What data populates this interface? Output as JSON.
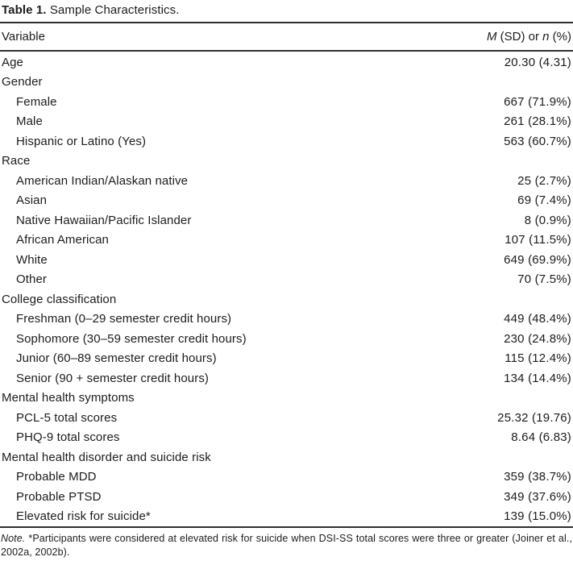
{
  "colors": {
    "background": "#ffffff",
    "text": "#1c1c1c",
    "rule": "#2e2e2e"
  },
  "table": {
    "title_bold": "Table 1.",
    "title_text": " Sample Characteristics.",
    "header": {
      "variable": "Variable",
      "value_m": "M",
      "value_mid": " (SD) or ",
      "value_n": "n",
      "value_suffix": " (%)"
    },
    "rows": [
      {
        "label": "Age",
        "value": "20.30 (4.31)",
        "indent": 0
      },
      {
        "label": "Gender",
        "value": "",
        "indent": 0
      },
      {
        "label": "Female",
        "value": "667 (71.9%)",
        "indent": 1
      },
      {
        "label": "Male",
        "value": "261 (28.1%)",
        "indent": 1
      },
      {
        "label": "Hispanic or Latino (Yes)",
        "value": "563 (60.7%)",
        "indent": 1
      },
      {
        "label": "Race",
        "value": "",
        "indent": 0
      },
      {
        "label": "American Indian/Alaskan native",
        "value": "25 (2.7%)",
        "indent": 1
      },
      {
        "label": "Asian",
        "value": "69 (7.4%)",
        "indent": 1
      },
      {
        "label": "Native Hawaiian/Pacific Islander",
        "value": "8 (0.9%)",
        "indent": 1
      },
      {
        "label": "African American",
        "value": "107 (11.5%)",
        "indent": 1
      },
      {
        "label": "White",
        "value": "649 (69.9%)",
        "indent": 1
      },
      {
        "label": "Other",
        "value": "70 (7.5%)",
        "indent": 1
      },
      {
        "label": "College classification",
        "value": "",
        "indent": 0
      },
      {
        "label": "Freshman (0–29 semester credit hours)",
        "value": "449 (48.4%)",
        "indent": 1
      },
      {
        "label": "Sophomore (30–59 semester credit hours)",
        "value": "230 (24.8%)",
        "indent": 1
      },
      {
        "label": "Junior (60–89 semester credit hours)",
        "value": "115 (12.4%)",
        "indent": 1
      },
      {
        "label": "Senior (90 + semester credit hours)",
        "value": "134 (14.4%)",
        "indent": 1
      },
      {
        "label": "Mental health symptoms",
        "value": "",
        "indent": 0
      },
      {
        "label": "PCL-5 total scores",
        "value": "25.32 (19.76)",
        "indent": 1
      },
      {
        "label": "PHQ-9 total scores",
        "value": "8.64 (6.83)",
        "indent": 1
      },
      {
        "label": "Mental health disorder and suicide risk",
        "value": "",
        "indent": 0
      },
      {
        "label": "Probable MDD",
        "value": "359 (38.7%)",
        "indent": 1
      },
      {
        "label": "Probable PTSD",
        "value": "349 (37.6%)",
        "indent": 1
      },
      {
        "label": "Elevated risk for suicide*",
        "value": "139 (15.0%)",
        "indent": 1
      }
    ],
    "note_prefix": "Note.",
    "note_text": " *Participants were considered at elevated risk for suicide when DSI-SS total scores were three or greater (Joiner et al., 2002a, 2002b)."
  }
}
